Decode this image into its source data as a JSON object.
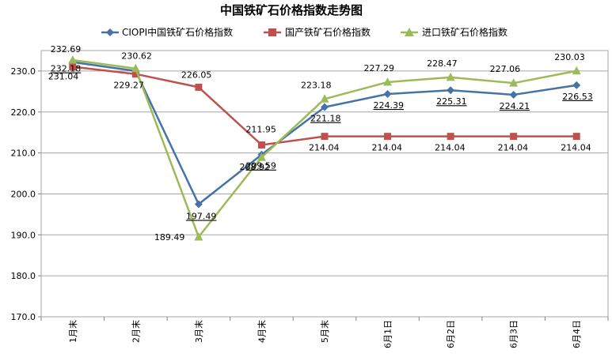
{
  "chart_data": {
    "type": "line",
    "title": "中国铁矿石价格指数走势图",
    "categories": [
      "1月末",
      "2月末",
      "3月末",
      "4月末",
      "5月末",
      "6月1日",
      "6月2日",
      "6月3日",
      "6月4日"
    ],
    "ylim": [
      170,
      235
    ],
    "yticks": [
      "170.0",
      "180.0",
      "190.0",
      "200.0",
      "210.0",
      "220.0",
      "230.0"
    ],
    "grid": "horizontal",
    "legend_position": "top",
    "series": [
      {
        "name": "CIOPI中国铁矿石价格指数",
        "color": "#4572A7",
        "marker": "diamond",
        "values": [
          232.18,
          230.0,
          197.49,
          209.59,
          221.18,
          224.39,
          225.31,
          224.21,
          226.53
        ],
        "labels": [
          "232.18",
          "",
          "197.49",
          "209.59",
          "221.18",
          "224.39",
          "225.31",
          "224.21",
          "226.53"
        ]
      },
      {
        "name": "国产铁矿石价格指数",
        "color": "#C0504D",
        "marker": "square",
        "values": [
          231.04,
          229.27,
          226.05,
          211.95,
          214.04,
          214.04,
          214.04,
          214.04,
          214.04
        ],
        "labels": [
          "231.04",
          "229.27",
          "226.05",
          "211.95",
          "214.04",
          "214.04",
          "214.04",
          "214.04",
          "214.04"
        ]
      },
      {
        "name": "进口铁矿石价格指数",
        "color": "#9BBB59",
        "marker": "triangle",
        "values": [
          232.69,
          230.62,
          189.49,
          208.92,
          223.18,
          227.29,
          228.47,
          227.06,
          230.03
        ],
        "labels": [
          "232.69",
          "230.62",
          "189.49",
          "208.92",
          "223.18",
          "227.29",
          "228.47",
          "227.06",
          "230.03"
        ]
      }
    ]
  }
}
